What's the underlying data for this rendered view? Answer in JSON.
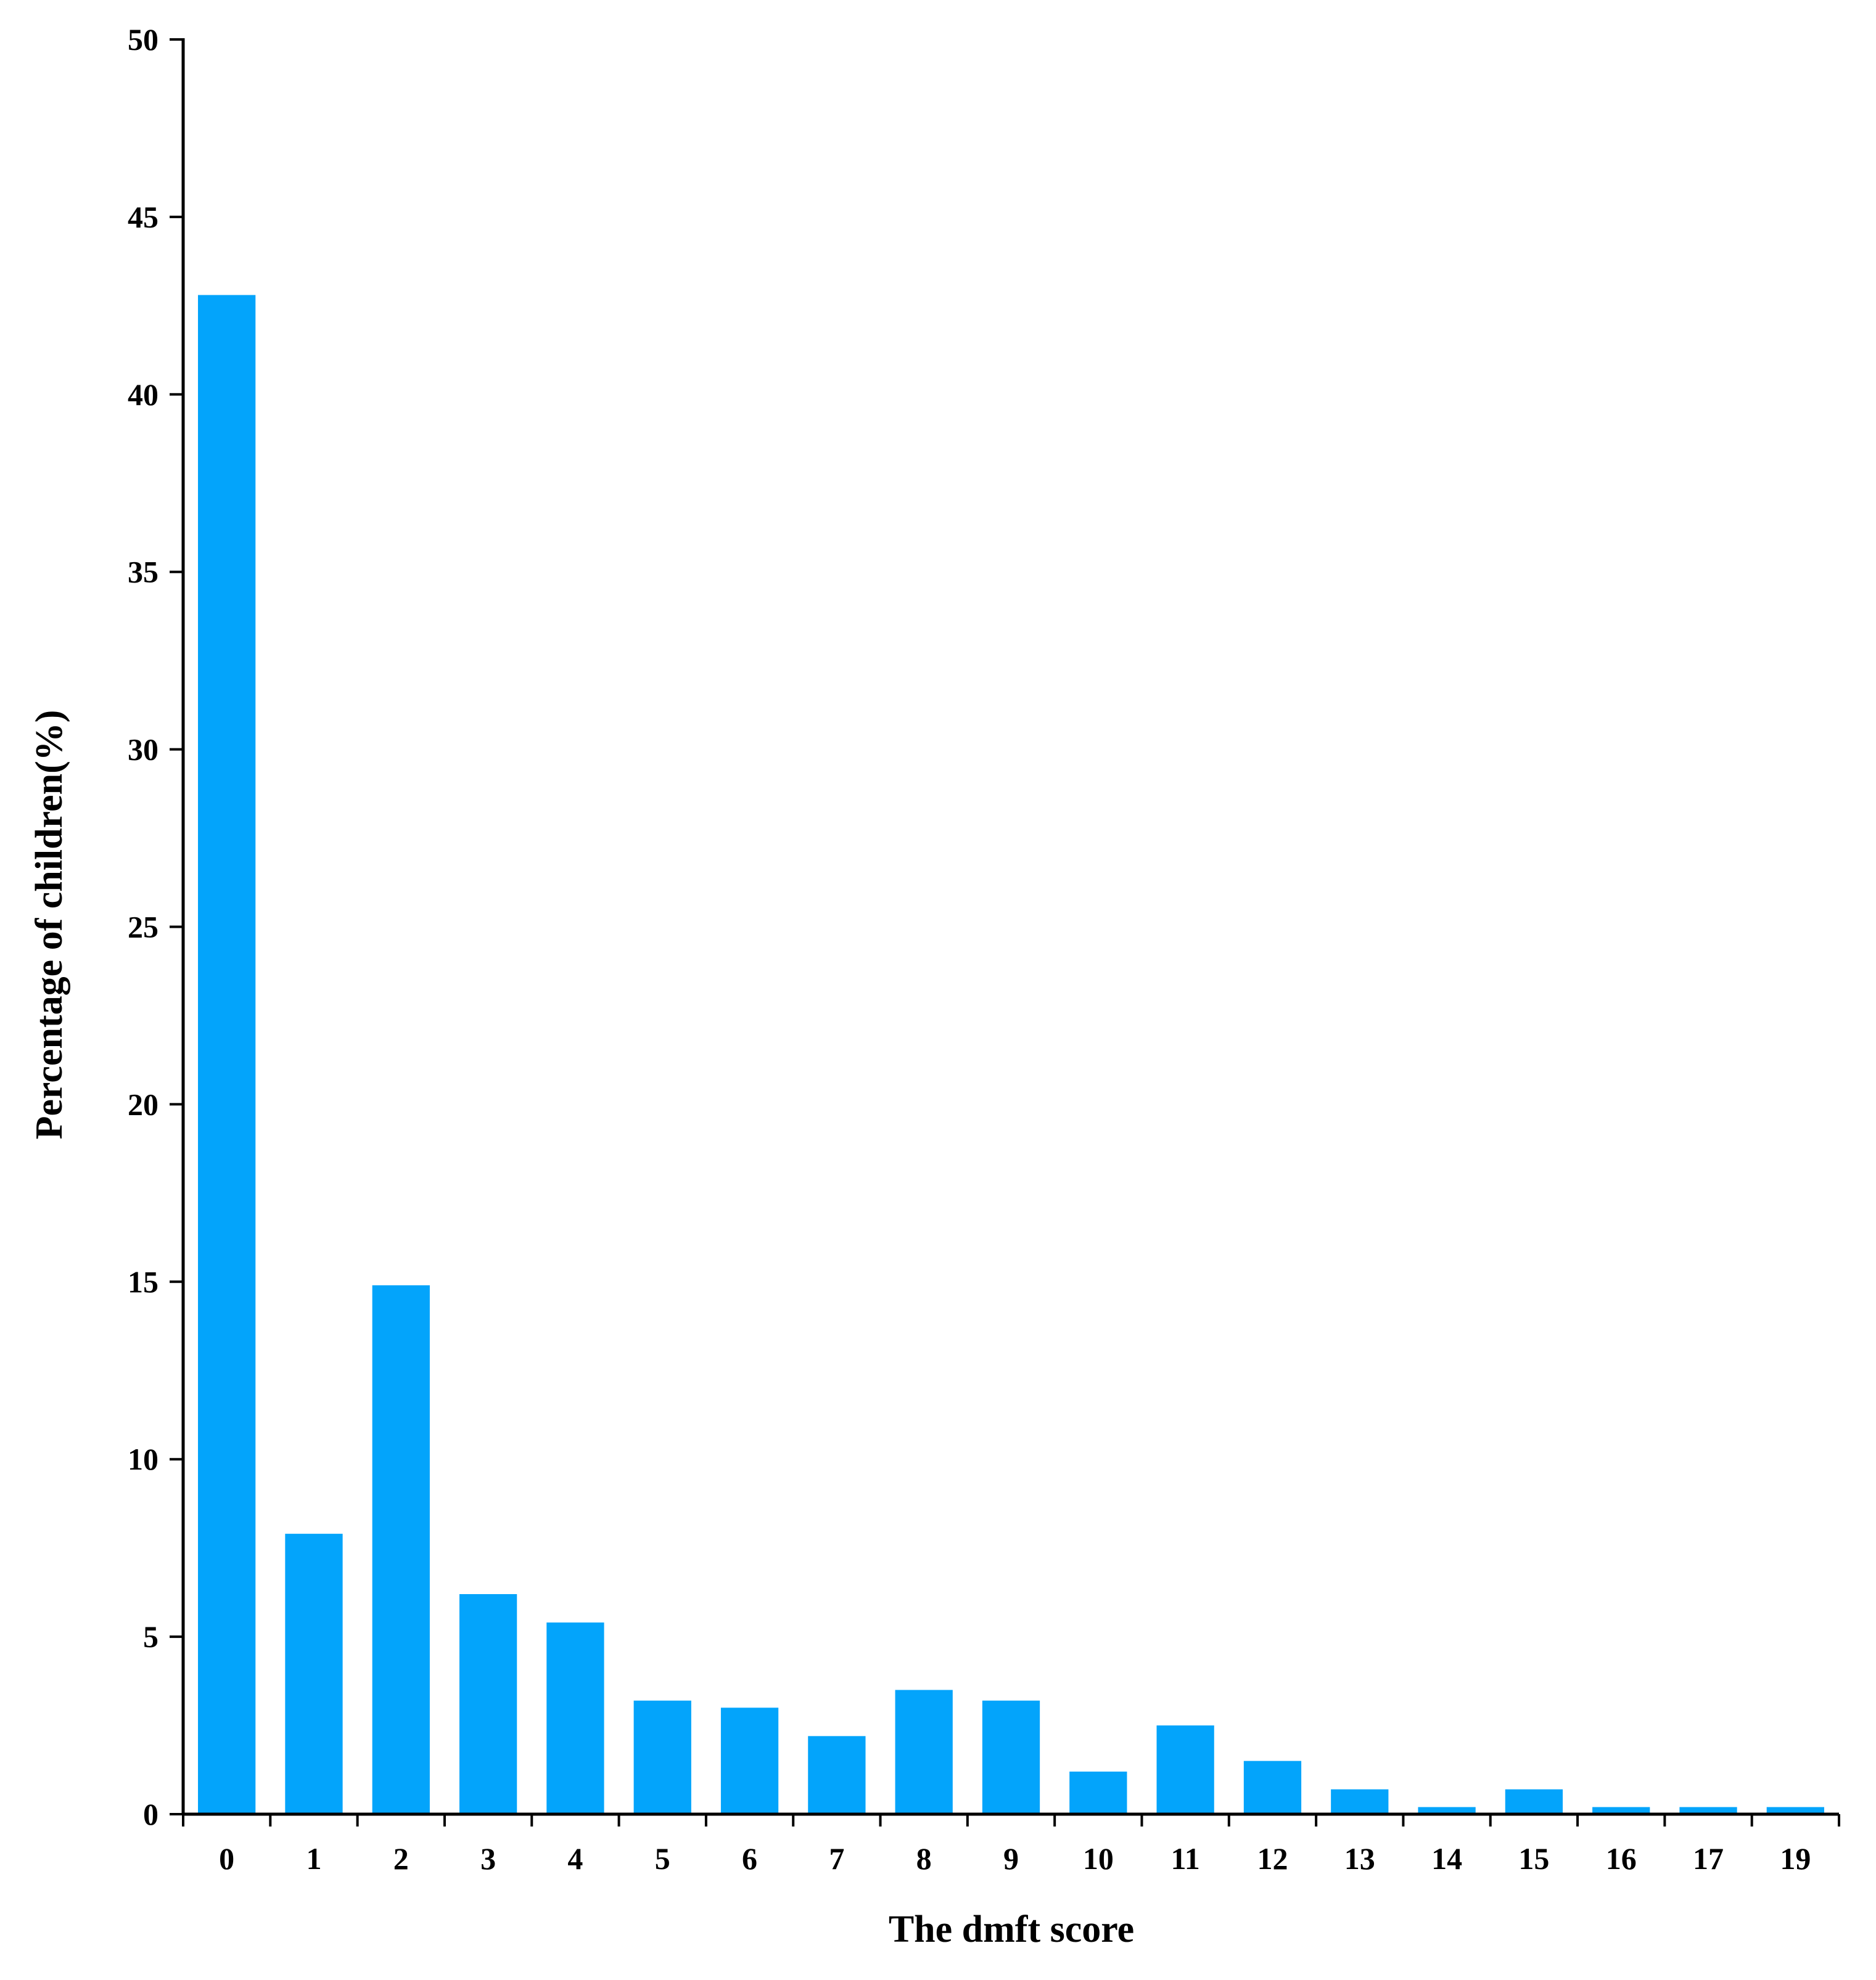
{
  "chart_data": {
    "type": "bar",
    "title": "",
    "xlabel": "The dmft score",
    "ylabel": "Percentage of children(%)",
    "ylim": [
      0,
      50
    ],
    "yticks": [
      "0",
      "5",
      "10",
      "15",
      "20",
      "25",
      "30",
      "35",
      "40",
      "45",
      "50"
    ],
    "categories": [
      "0",
      "1",
      "2",
      "3",
      "4",
      "5",
      "6",
      "7",
      "8",
      "9",
      "10",
      "11",
      "12",
      "13",
      "14",
      "15",
      "16",
      "17",
      "19"
    ],
    "values": [
      42.8,
      7.9,
      14.9,
      6.2,
      5.4,
      3.2,
      3.0,
      2.2,
      3.5,
      3.2,
      1.2,
      2.5,
      1.5,
      0.7,
      0.2,
      0.7,
      0.2,
      0.2,
      0.2
    ],
    "bar_color": "#03a4fb",
    "grid": false,
    "legend": "none"
  }
}
